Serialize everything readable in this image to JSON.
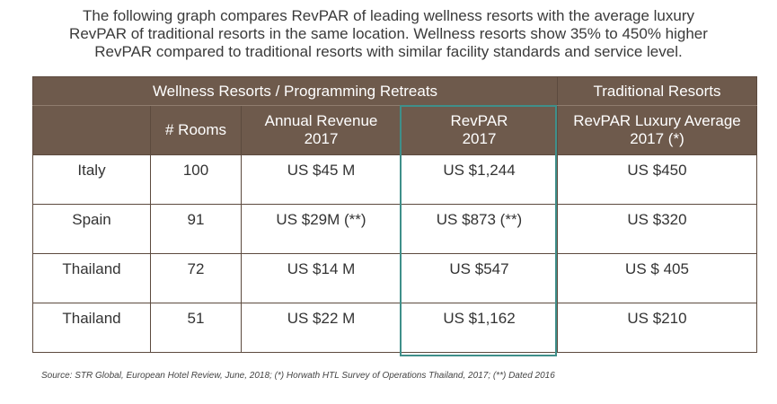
{
  "intro": {
    "line1": "The following graph compares RevPAR of leading wellness resorts with the average luxury",
    "line2": "RevPAR of traditional resorts in the same location. Wellness resorts show 35% to 450% higher",
    "line3": "RevPAR compared to traditional resorts with similar facility standards and service level."
  },
  "table": {
    "group_left": "Wellness Resorts / Programming Retreats",
    "group_right": "Traditional Resorts",
    "columns": [
      "",
      "# Rooms",
      "Annual Revenue 2017",
      "RevPAR 2017",
      "RevPAR Luxury Average 2017 (*)"
    ],
    "col_rooms": "# Rooms",
    "col_rev_l1": "Annual Revenue",
    "col_rev_l2": "2017",
    "col_revpar_l1": "RevPAR",
    "col_revpar_l2": "2017",
    "col_lux_l1": "RevPAR Luxury Average",
    "col_lux_l2": "2017 (*)",
    "rows": [
      {
        "country": "Italy",
        "rooms": "100",
        "revenue": "US $45 M",
        "revpar": "US $1,244",
        "luxury": "US $450"
      },
      {
        "country": "Spain",
        "rooms": "91",
        "revenue": "US $29M (**)",
        "revpar": "US $873 (**)",
        "luxury": "US $320"
      },
      {
        "country": "Thailand",
        "rooms": "72",
        "revenue": "US $14 M",
        "revpar": "US $547",
        "luxury": "US $ 405"
      },
      {
        "country": "Thailand",
        "rooms": "51",
        "revenue": "US $22 M",
        "revpar": "US $1,162",
        "luxury": "US $210"
      }
    ]
  },
  "source": "Source: STR Global, European Hotel Review, June, 2018; (*) Horwath HTL Survey of Operations Thailand, 2017; (**) Dated 2016",
  "colors": {
    "header_bg": "#6e5a4c",
    "highlight": "#3f8f8a"
  },
  "chart_data": {
    "type": "table",
    "columns": [
      "",
      "# Rooms",
      "Annual Revenue 2017",
      "RevPAR 2017",
      "RevPAR Luxury Average 2017 (*)"
    ],
    "rows": [
      [
        "Italy",
        "100",
        "US $45 M",
        "US $1,244",
        "US $450"
      ],
      [
        "Spain",
        "91",
        "US $29M (**)",
        "US $873 (**)",
        "US $320"
      ],
      [
        "Thailand",
        "72",
        "US $14 M",
        "US $547",
        "US $ 405"
      ],
      [
        "Thailand",
        "51",
        "US $22 M",
        "US $1,162",
        "US $210"
      ]
    ]
  }
}
